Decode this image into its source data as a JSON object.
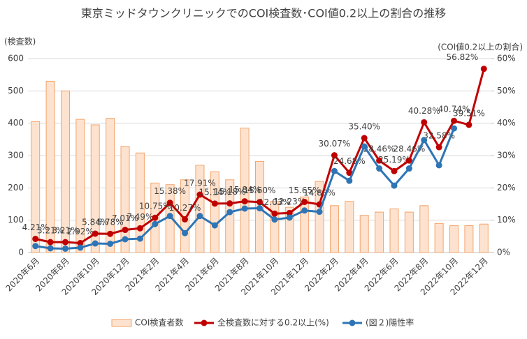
{
  "chart_data": {
    "type": "combo",
    "title": "東京ミッドタウンクリニックでのCOI検査数･COI値0.2以上の割合の推移",
    "y_label": "(検査数)",
    "y2_label": "(COI値0.2以上の割合)",
    "categories": [
      "2020年6月",
      null,
      "2020年8月",
      null,
      "2020年10月",
      null,
      "2020年12月",
      null,
      "2021年2月",
      null,
      "2021年4月",
      null,
      "2021年6月",
      null,
      "2021年8月",
      null,
      "2021年10月",
      null,
      "2021年12月",
      null,
      "2022年2月",
      null,
      "2022年4月",
      null,
      "2022年6月",
      null,
      "2022年8月",
      null,
      "2022年10月",
      null,
      "2022年12月"
    ],
    "ylim": [
      0,
      600
    ],
    "yticks": [
      0,
      100,
      200,
      300,
      400,
      500,
      600
    ],
    "y2lim": [
      0,
      60
    ],
    "y2ticks": [
      {
        "value": 0,
        "label": "0%"
      },
      {
        "value": 10,
        "label": "10%"
      },
      {
        "value": 20,
        "label": "20%"
      },
      {
        "value": 30,
        "label": "30%"
      },
      {
        "value": 40,
        "label": "40%"
      },
      {
        "value": 50,
        "label": "50%"
      },
      {
        "value": 60,
        "label": "60%"
      }
    ],
    "legend": "bottom",
    "series": [
      {
        "name": "COI検査者数",
        "type": "bar",
        "color": "#fde3cf",
        "values": [
          405,
          530,
          500,
          412,
          395,
          415,
          328,
          308,
          215,
          210,
          225,
          270,
          250,
          225,
          385,
          282,
          158,
          140,
          172,
          220,
          145,
          158,
          115,
          125,
          135,
          125,
          145,
          90,
          83,
          83,
          88
        ]
      },
      {
        "name": "全検査数に対する0.2以上(%)",
        "type": "line",
        "axis": "y2",
        "color": "#c00000",
        "values": [
          4.21,
          3.21,
          3.21,
          2.92,
          5.84,
          5.78,
          7.01,
          7.49,
          10.75,
          15.38,
          10.27,
          17.91,
          15.14,
          15.18,
          15.84,
          15.6,
          12.03,
          12.23,
          15.65,
          14.88,
          30.07,
          24.68,
          35.4,
          28.46,
          25.19,
          28.46,
          40.28,
          32.58,
          40.74,
          39.51,
          56.82
        ],
        "value_labels": [
          "4.21%",
          "3.21%",
          "3.21%",
          "2.92%",
          "5.84%",
          "5.78%",
          "7.01%",
          "7.49%",
          "10.75%",
          "15.38%",
          "10.27%",
          "17.91%",
          "15.14%",
          "15.18%",
          "15.84%",
          "15.60%",
          "12.03%",
          "12.23%",
          "15.65%",
          "14.88%",
          "30.07%",
          "24.68%",
          "35.40%",
          "28.46%",
          "25.19%",
          "28.46%",
          "40.28%",
          "32.58%",
          "40.74%",
          "39.51%",
          "56.82%"
        ]
      },
      {
        "name": "(図２)陽性率",
        "type": "line",
        "axis": "y2",
        "color": "#2e75b6",
        "values": [
          2.0,
          1.3,
          1.2,
          1.5,
          2.8,
          2.7,
          4.1,
          4.3,
          8.8,
          11.3,
          6.0,
          11.3,
          8.4,
          12.5,
          13.6,
          13.7,
          10.2,
          10.8,
          13.0,
          12.6,
          25.2,
          22.2,
          32.8,
          26.0,
          20.7,
          26.0,
          34.8,
          27.0,
          38.4,
          null,
          null
        ]
      }
    ]
  }
}
